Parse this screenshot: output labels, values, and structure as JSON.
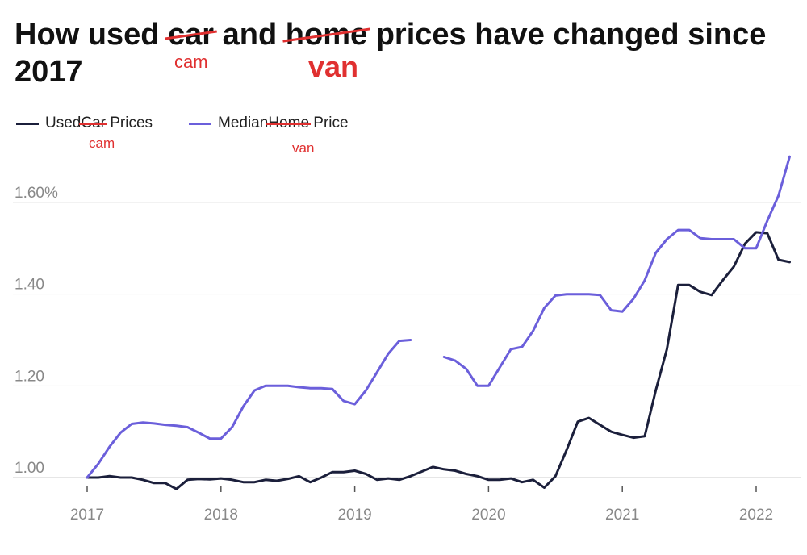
{
  "title": {
    "p1": "How used ",
    "struck1": "car",
    "p2": " and ",
    "struck2": "home",
    "p3": " prices have changed since 2017",
    "ann1": "cam",
    "ann2": "van"
  },
  "legend": {
    "used": {
      "p1": "Used",
      "struck": "Car",
      "p2": " Prices",
      "ann": "cam",
      "color": "#1b1f3b"
    },
    "home": {
      "p1": "Median",
      "struck": "Home",
      "p2": " Price",
      "ann": "van",
      "color": "#6b5fdb"
    }
  },
  "chart_data": {
    "type": "line",
    "x_ticks": [
      "2017",
      "2018",
      "2019",
      "2020",
      "2021",
      "2022"
    ],
    "y_ticks": [
      "1.00",
      "1.20",
      "1.40",
      "1.60%"
    ],
    "ylim": [
      0.97,
      1.72
    ],
    "xlim": [
      2017.0,
      2022.35
    ],
    "grid": true,
    "legend_position": "top-left",
    "series": [
      {
        "name": "Used Car Prices",
        "color": "#1b1f3b",
        "x": [
          2017.0,
          2017.083,
          2017.167,
          2017.25,
          2017.333,
          2017.417,
          2017.5,
          2017.583,
          2017.667,
          2017.75,
          2017.833,
          2017.917,
          2018.0,
          2018.083,
          2018.167,
          2018.25,
          2018.333,
          2018.417,
          2018.5,
          2018.583,
          2018.667,
          2018.75,
          2018.833,
          2018.917,
          2019.0,
          2019.083,
          2019.167,
          2019.25,
          2019.333,
          2019.417,
          2019.5,
          2019.583,
          2019.667,
          2019.75,
          2019.833,
          2019.917,
          2020.0,
          2020.083,
          2020.167,
          2020.25,
          2020.333,
          2020.417,
          2020.5,
          2020.583,
          2020.667,
          2020.75,
          2020.833,
          2020.917,
          2021.0,
          2021.083,
          2021.167,
          2021.25,
          2021.333,
          2021.417,
          2021.5,
          2021.583,
          2021.667,
          2021.75,
          2021.833,
          2021.917,
          2022.0,
          2022.083,
          2022.167,
          2022.25
        ],
        "values": [
          1.0,
          1.0,
          1.003,
          1.0,
          1.0,
          0.995,
          0.988,
          0.988,
          0.975,
          0.995,
          0.997,
          0.996,
          0.998,
          0.995,
          0.99,
          0.99,
          0.995,
          0.993,
          0.997,
          1.003,
          0.99,
          1.0,
          1.012,
          1.012,
          1.015,
          1.008,
          0.995,
          0.998,
          0.995,
          1.003,
          1.013,
          1.023,
          1.018,
          1.015,
          1.008,
          1.003,
          0.995,
          0.995,
          0.998,
          0.99,
          0.995,
          0.978,
          1.003,
          1.06,
          1.122,
          1.13,
          1.115,
          1.1,
          1.093,
          1.087,
          1.09,
          1.19,
          1.28,
          1.42,
          1.42,
          1.405,
          1.398,
          1.43,
          1.46,
          1.51,
          1.535,
          1.533,
          1.475,
          1.47
        ]
      },
      {
        "name": "Median Home Price",
        "color": "#6b5fdb",
        "x": [
          2017.0,
          2017.083,
          2017.167,
          2017.25,
          2017.333,
          2017.417,
          2017.5,
          2017.583,
          2017.667,
          2017.75,
          2017.833,
          2017.917,
          2018.0,
          2018.083,
          2018.167,
          2018.25,
          2018.333,
          2018.417,
          2018.5,
          2018.583,
          2018.667,
          2018.75,
          2018.833,
          2018.917,
          2019.0,
          2019.083,
          2019.167,
          2019.25,
          2019.333,
          2019.417,
          null,
          2019.667,
          2019.75,
          2019.833,
          2019.917,
          2020.0,
          2020.083,
          2020.167,
          2020.25,
          2020.333,
          2020.417,
          2020.5,
          2020.583,
          2020.667,
          2020.75,
          2020.833,
          2020.917,
          2021.0,
          2021.083,
          2021.167,
          2021.25,
          2021.333,
          2021.417,
          2021.5,
          2021.583,
          2021.667,
          2021.75,
          2021.833,
          2021.917,
          2022.0,
          2022.083,
          2022.167,
          2022.25
        ],
        "values": [
          1.0,
          1.03,
          1.067,
          1.098,
          1.117,
          1.12,
          1.118,
          1.115,
          1.113,
          1.11,
          1.098,
          1.085,
          1.085,
          1.11,
          1.155,
          1.19,
          1.2,
          1.2,
          1.2,
          1.197,
          1.195,
          1.195,
          1.193,
          1.167,
          1.16,
          1.19,
          1.23,
          1.27,
          1.298,
          1.3,
          null,
          1.263,
          1.255,
          1.237,
          1.2,
          1.2,
          1.24,
          1.28,
          1.285,
          1.32,
          1.37,
          1.397,
          1.4,
          1.4,
          1.4,
          1.398,
          1.365,
          1.362,
          1.39,
          1.43,
          1.49,
          1.52,
          1.54,
          1.54,
          1.522,
          1.52,
          1.52,
          1.52,
          1.5,
          1.5,
          1.56,
          1.615,
          1.7
        ]
      }
    ]
  }
}
